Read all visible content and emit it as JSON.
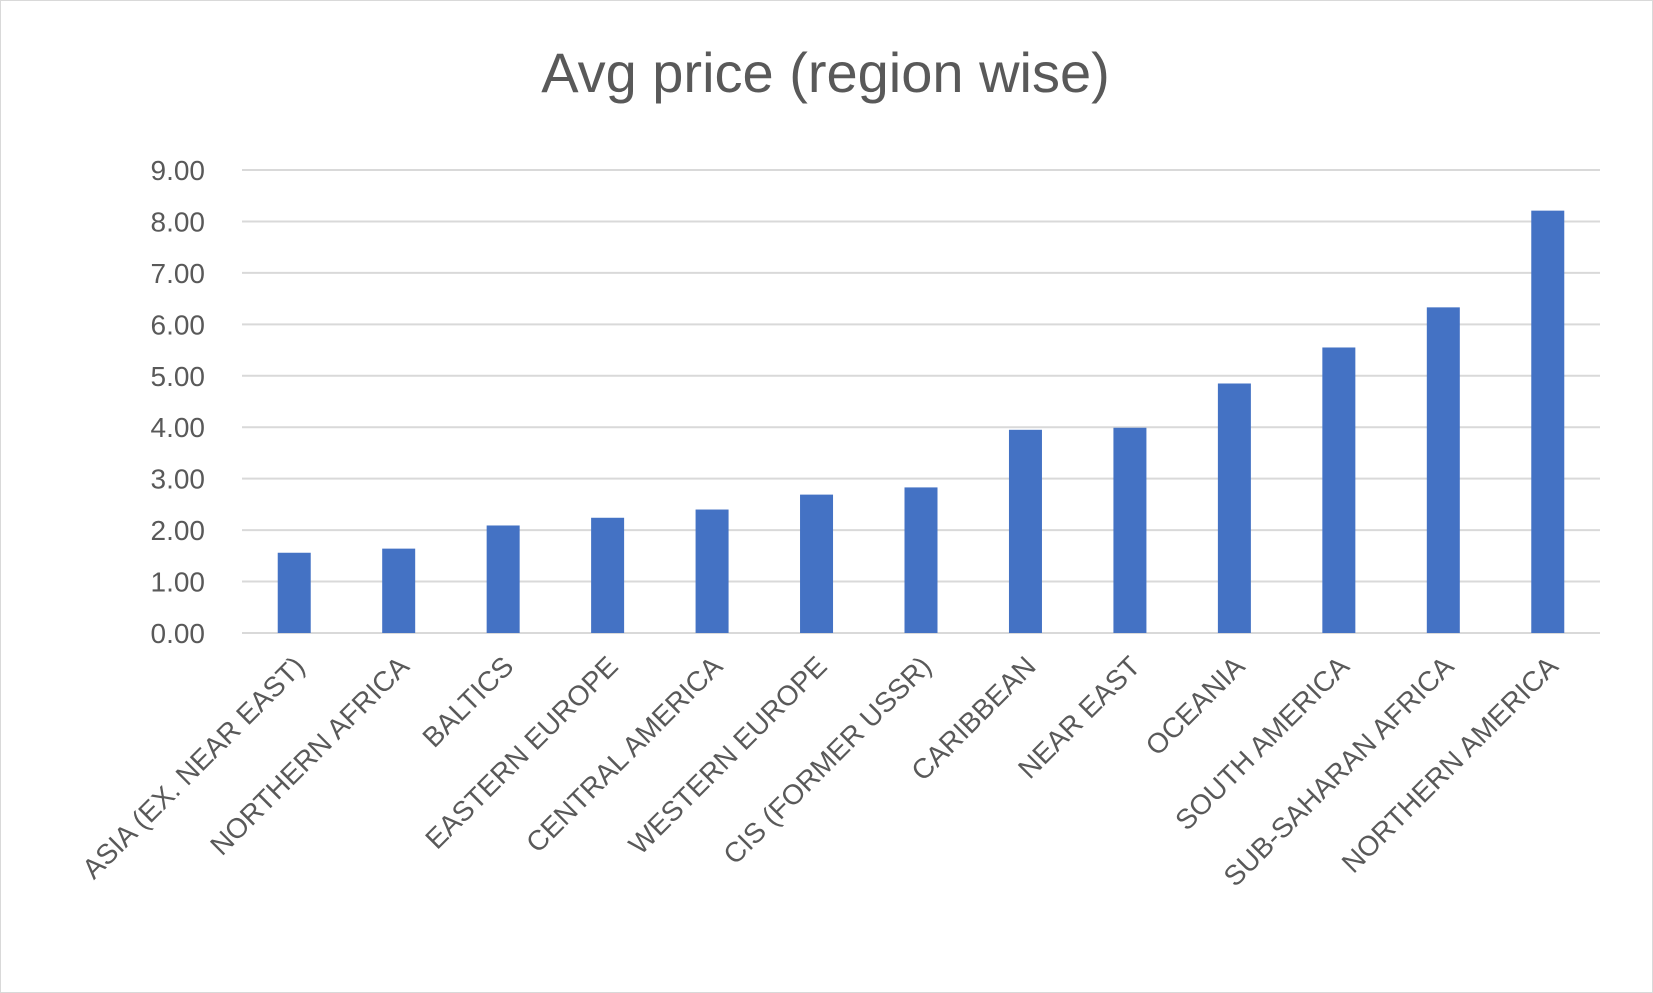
{
  "chart_data": {
    "type": "bar",
    "title": "Avg price (region wise)",
    "xlabel": "",
    "ylabel": "",
    "categories": [
      "ASIA (EX. NEAR EAST)",
      "NORTHERN AFRICA",
      "BALTICS",
      "EASTERN EUROPE",
      "CENTRAL AMERICA",
      "WESTERN EUROPE",
      "CIS (FORMER USSR)",
      "CARIBBEAN",
      "NEAR EAST",
      "OCEANIA",
      "SOUTH AMERICA",
      "SUB-SAHARAN AFRICA",
      "NORTHERN AMERICA"
    ],
    "values": [
      1.56,
      1.64,
      2.09,
      2.24,
      2.4,
      2.69,
      2.83,
      3.95,
      3.99,
      4.85,
      5.55,
      6.33,
      8.21
    ],
    "ylim": [
      0,
      9
    ],
    "yticks": [
      "0.00",
      "1.00",
      "2.00",
      "3.00",
      "4.00",
      "5.00",
      "6.00",
      "7.00",
      "8.00",
      "9.00"
    ],
    "grid": true,
    "legend": "none",
    "colors": {
      "bar": "#4472C4",
      "grid": "#d9d9d9",
      "text": "#595959"
    }
  }
}
